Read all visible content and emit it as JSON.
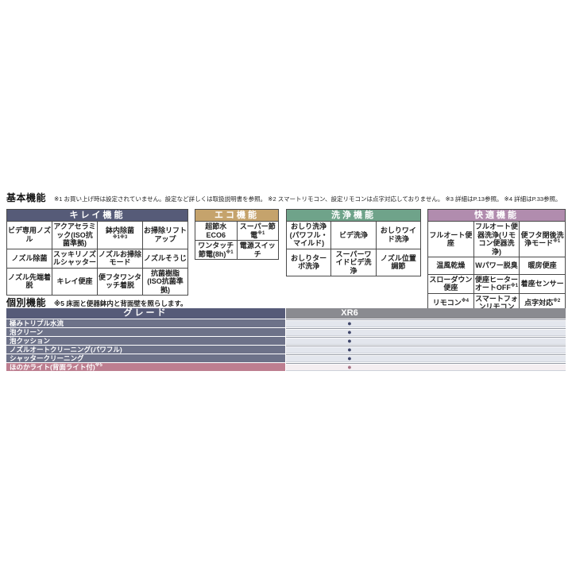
{
  "basic": {
    "heading": "基本機能",
    "notes": "※1 お買い上げ時は設定されていません。設定など詳しくは取扱説明書を参照。 ※2 スマートリモコン、設定リモコンは点字対応しておりません。 ※3 詳細はP.13参照。 ※4 詳細はP.33参照。"
  },
  "tables": [
    {
      "title": "キレイ機能",
      "cells": [
        {
          "label": "ビデ専用ノズル",
          "sup": ""
        },
        {
          "label": "アクアセラミック(ISO抗菌準拠)",
          "sup": ""
        },
        {
          "label": "鉢内除菌",
          "sup": "※1※3"
        },
        {
          "label": "お掃除リフトアップ",
          "sup": ""
        },
        {
          "label": "ノズル除菌",
          "sup": ""
        },
        {
          "label": "スッキリノズルシャッター",
          "sup": ""
        },
        {
          "label": "ノズルお掃除モード",
          "sup": ""
        },
        {
          "label": "ノズルそうじ",
          "sup": ""
        },
        {
          "label": "ノズル先端着脱",
          "sup": ""
        },
        {
          "label": "キレイ便座",
          "sup": ""
        },
        {
          "label": "便フタワンタッチ着脱",
          "sup": ""
        },
        {
          "label": "抗菌樹脂(ISO抗菌準拠)",
          "sup": ""
        }
      ]
    },
    {
      "title": "エコ機能",
      "cells": [
        {
          "label": "超節水ECO6",
          "sup": ""
        },
        {
          "label": "スーパー節電",
          "sup": "※1"
        },
        {
          "label": "ワンタッチ節電(8h)",
          "sup": "※1"
        },
        {
          "label": "電源スイッチ",
          "sup": ""
        }
      ]
    },
    {
      "title": "洗浄機能",
      "cells": [
        {
          "label": "おしり洗浄(パワフル・マイルド)",
          "sup": ""
        },
        {
          "label": "ビデ洗浄",
          "sup": ""
        },
        {
          "label": "おしりワイド洗浄",
          "sup": ""
        },
        {
          "label": "おしりターボ洗浄",
          "sup": ""
        },
        {
          "label": "スーパーワイドビデ洗浄",
          "sup": ""
        },
        {
          "label": "ノズル位置調節",
          "sup": ""
        }
      ]
    },
    {
      "title": "快適機能",
      "cells": [
        {
          "label": "フルオート便座",
          "sup": ""
        },
        {
          "label": "フルオート便器洗浄(リモコン便器洗浄)",
          "sup": ""
        },
        {
          "label": "便フタ閉後洗浄モード",
          "sup": "※1"
        },
        {
          "label": "温風乾燥",
          "sup": ""
        },
        {
          "label": "Wパワー脱臭",
          "sup": ""
        },
        {
          "label": "暖房便座",
          "sup": ""
        },
        {
          "label": "スローダウン便座",
          "sup": ""
        },
        {
          "label": "便座ヒーターオートOFF",
          "sup": "※1"
        },
        {
          "label": "着座センサー",
          "sup": ""
        },
        {
          "label": "リモコン",
          "sup": "※4"
        },
        {
          "label": "スマートフォンリモコン",
          "sup": ""
        },
        {
          "label": "点字対応",
          "sup": "※2"
        }
      ]
    }
  ],
  "individual": {
    "heading": "個別機能",
    "note": "※5 床面と便器鉢内と背面壁を照らします。",
    "grade_header": "グレード",
    "model_header": "XR6",
    "rows": [
      {
        "label": "極みトリプル水流",
        "sup": "",
        "value": "●"
      },
      {
        "label": "泡クリーン",
        "sup": "",
        "value": "●"
      },
      {
        "label": "泡クッション",
        "sup": "",
        "value": "●"
      },
      {
        "label": "ノズルオートクリーニング(パワフル)",
        "sup": "",
        "value": "●"
      },
      {
        "label": "シャッタークリーニング",
        "sup": "",
        "value": "●"
      },
      {
        "label": "ほのかライト(背面ライト付)",
        "sup": "※5",
        "value": "●"
      }
    ]
  },
  "colors": {
    "kirei_header": "#565b78",
    "eco_header": "#c5a36c",
    "senjou_header": "#6fa38a",
    "kaiteki_header": "#b18cae",
    "grade_header_bg": "#565b78",
    "model_header_bg": "#8a8b90",
    "row_label_bg": "#6d7289",
    "row_label_highlight_bg": "#bd7e90",
    "row_cell_bg": "#e3e6ed",
    "row_cell_highlight_bg": "#f4eef1",
    "dot_color": "#3e4569",
    "dot_highlight_color": "#a87486",
    "table_border": "#4a4a4a"
  }
}
